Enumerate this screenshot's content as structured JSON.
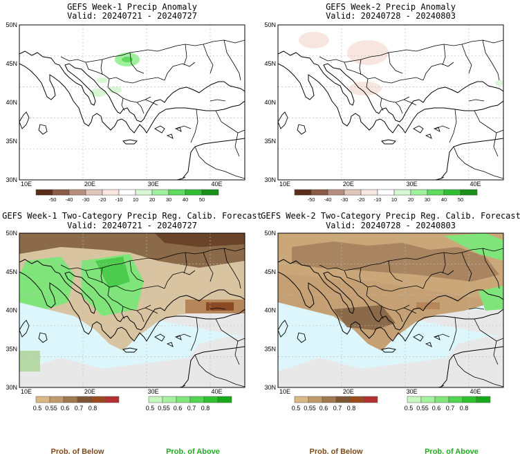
{
  "panels": [
    {
      "title": "GEFS Week-1 Precip Anomaly",
      "valid": "Valid: 20240721 - 20240727",
      "kind": "anomaly",
      "lat_labels": [
        "50N",
        "45N",
        "40N",
        "35N",
        "30N"
      ],
      "lon_labels": [
        "10E",
        "20E",
        "30E",
        "40E"
      ]
    },
    {
      "title": "GEFS Week-2 Precip Anomaly",
      "valid": "Valid: 20240728 - 20240803",
      "kind": "anomaly",
      "lat_labels": [
        "50N",
        "45N",
        "40N",
        "35N",
        "30N"
      ],
      "lon_labels": [
        "10E",
        "20E",
        "30E",
        "40E"
      ]
    },
    {
      "title": "GEFS Week-1 Two-Category Precip Reg. Calib. Forecast",
      "valid": "Valid: 20240721 - 20240727",
      "kind": "probability",
      "lat_labels": [
        "50N",
        "45N",
        "40N",
        "35N",
        "30N"
      ],
      "lon_labels": [
        "10E",
        "20E",
        "30E",
        "40E"
      ]
    },
    {
      "title": "GEFS Week-2 Two-Category Precip Reg. Calib. Forecast",
      "valid": "Valid: 20240728 - 20240803",
      "kind": "probability",
      "lat_labels": [
        "50N",
        "45N",
        "40N",
        "35N",
        "30N"
      ],
      "lon_labels": [
        "10E",
        "20E",
        "30E",
        "40E"
      ]
    }
  ],
  "anomaly_colorbar": {
    "ticks": [
      "-50",
      "-40",
      "-30",
      "-20",
      "-10",
      "10",
      "20",
      "30",
      "40",
      "50"
    ],
    "colors": [
      "#5c2e1a",
      "#8a5a45",
      "#b58e7f",
      "#e2c6bb",
      "#f6e6df",
      "#ffffff",
      "#d8f5d4",
      "#9ff09c",
      "#5fdb5f",
      "#31bd31",
      "#1a8f1a"
    ]
  },
  "below_colorbar": {
    "ticks": [
      "0.5",
      "0.55",
      "0.6",
      "0.7",
      "0.8"
    ],
    "colors": [
      "#d9b786",
      "#c19a6b",
      "#a0784f",
      "#7e5636",
      "#9a4a1c",
      "#b23030"
    ],
    "label": "Prob. of Below",
    "label_color": "#7a4a1a"
  },
  "above_colorbar": {
    "ticks": [
      "0.5",
      "0.55",
      "0.6",
      "0.7",
      "0.8"
    ],
    "colors": [
      "#c6f7c0",
      "#a5f29e",
      "#7fe57a",
      "#52d652",
      "#2fc22f",
      "#18a818"
    ],
    "label": "Prob. of Above",
    "label_color": "#1fae1f"
  },
  "map_colors": {
    "sea_cyan": "#dcf6fb",
    "no_data_grey": "#e8e8e8",
    "below_brown": "#a88460",
    "dark_brown": "#7e5636",
    "green": "#7fe57a",
    "dark_green": "#4ccb4c"
  }
}
